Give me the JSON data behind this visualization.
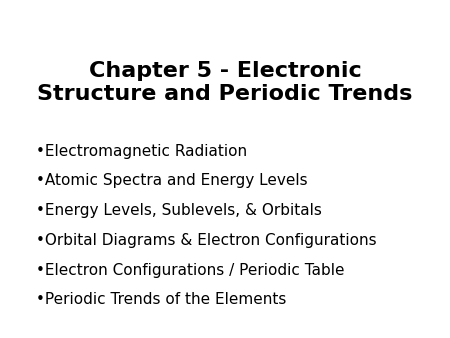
{
  "title_line1": "Chapter 5 - Electronic",
  "title_line2": "Structure and Periodic Trends",
  "bullet_items": [
    "Electromagnetic Radiation",
    "Atomic Spectra and Energy Levels",
    "Energy Levels, Sublevels, & Orbitals",
    "Orbital Diagrams & Electron Configurations",
    "Electron Configurations / Periodic Table",
    "Periodic Trends of the Elements"
  ],
  "background_color": "#ffffff",
  "text_color": "#000000",
  "title_fontsize": 16,
  "bullet_fontsize": 11,
  "bullet_symbol": "•"
}
